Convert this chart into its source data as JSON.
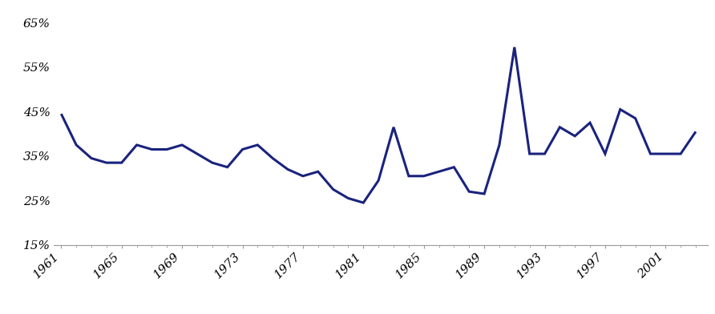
{
  "years": [
    1961,
    1962,
    1963,
    1964,
    1965,
    1966,
    1967,
    1968,
    1969,
    1970,
    1971,
    1972,
    1973,
    1974,
    1975,
    1976,
    1977,
    1978,
    1979,
    1980,
    1981,
    1982,
    1983,
    1984,
    1985,
    1986,
    1987,
    1988,
    1989,
    1990,
    1991,
    1992,
    1993,
    1994,
    1995,
    1996,
    1997,
    1998,
    1999,
    2000,
    2001,
    2002,
    2003
  ],
  "values": [
    0.445,
    0.375,
    0.345,
    0.335,
    0.335,
    0.375,
    0.365,
    0.365,
    0.375,
    0.355,
    0.335,
    0.325,
    0.365,
    0.375,
    0.345,
    0.32,
    0.305,
    0.315,
    0.275,
    0.255,
    0.245,
    0.295,
    0.415,
    0.305,
    0.305,
    0.315,
    0.325,
    0.27,
    0.265,
    0.375,
    0.595,
    0.355,
    0.355,
    0.415,
    0.395,
    0.425,
    0.355,
    0.455,
    0.435,
    0.355,
    0.355,
    0.355,
    0.405
  ],
  "line_color": "#1a237e",
  "line_width": 2.2,
  "yticks": [
    0.15,
    0.25,
    0.35,
    0.45,
    0.55,
    0.65
  ],
  "ytick_labels": [
    "15%",
    "25%",
    "35%",
    "45%",
    "55%",
    "65%"
  ],
  "xticks": [
    1961,
    1965,
    1969,
    1973,
    1977,
    1981,
    1985,
    1989,
    1993,
    1997,
    2001
  ],
  "ylim": [
    0.15,
    0.68
  ],
  "xlim": [
    1960.5,
    2003.8
  ],
  "background_color": "#ffffff"
}
